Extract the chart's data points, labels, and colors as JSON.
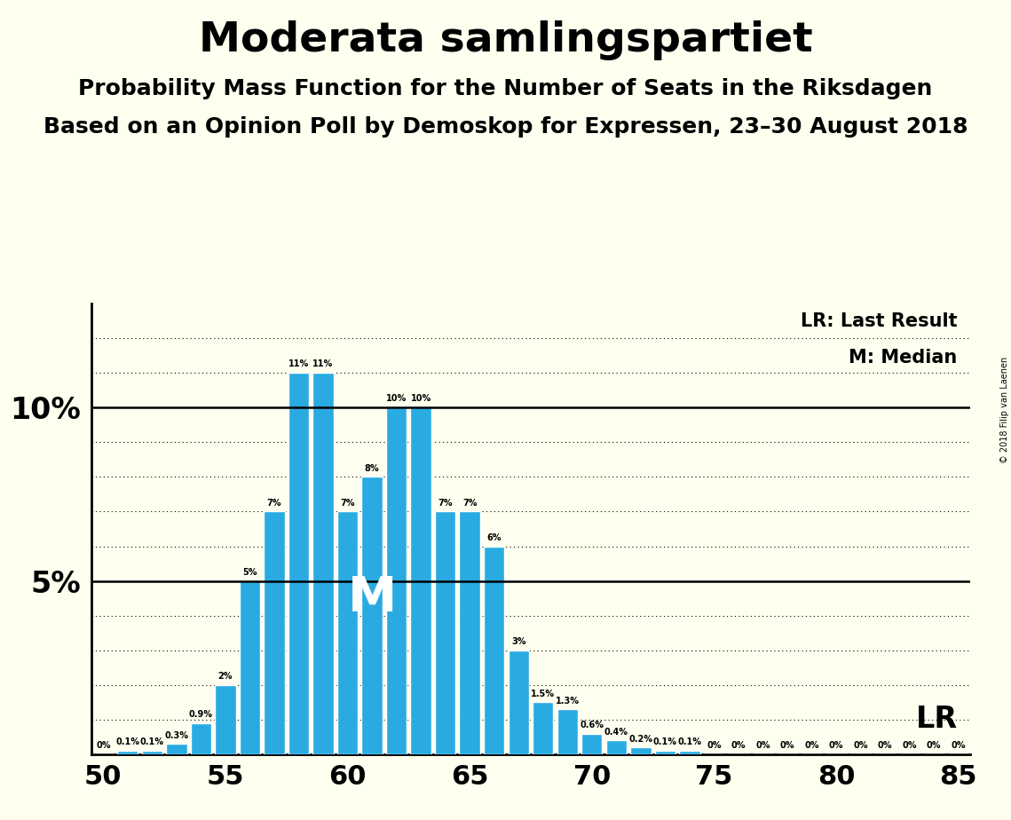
{
  "title": "Moderata samlingspartiet",
  "subtitle1": "Probability Mass Function for the Number of Seats in the Riksdagen",
  "subtitle2": "Based on an Opinion Poll by Demoskop for Expressen, 23–30 August 2018",
  "copyright": "© 2018 Filip van Laenen",
  "seats": [
    50,
    51,
    52,
    53,
    54,
    55,
    56,
    57,
    58,
    59,
    60,
    61,
    62,
    63,
    64,
    65,
    66,
    67,
    68,
    69,
    70,
    71,
    72,
    73,
    74,
    75,
    76,
    77,
    78,
    79,
    80,
    81,
    82,
    83,
    84,
    85
  ],
  "probabilities": [
    0.0,
    0.1,
    0.1,
    0.3,
    0.9,
    2.0,
    5.0,
    7.0,
    11.0,
    11.0,
    7.0,
    8.0,
    10.0,
    10.0,
    7.0,
    7.0,
    6.0,
    3.0,
    1.5,
    1.3,
    0.6,
    0.4,
    0.2,
    0.1,
    0.1,
    0.0,
    0.0,
    0.0,
    0.0,
    0.0,
    0.0,
    0.0,
    0.0,
    0.0,
    0.0,
    0.0
  ],
  "bar_color": "#29ABE2",
  "bar_edge_color": "#FFFFFF",
  "background_color": "#FFFFF0",
  "solid_lines": [
    5.0,
    10.0
  ],
  "dotted_lines": [
    1.0,
    2.0,
    3.0,
    4.0,
    6.0,
    7.0,
    8.0,
    9.0,
    11.0,
    12.0
  ],
  "lr_value": 1.0,
  "median_x": 61.0,
  "median_y": 4.5,
  "median_label": "M",
  "lr_label": "LR",
  "legend_lr": "LR: Last Result",
  "legend_m": "M: Median",
  "xlim": [
    49.5,
    85.5
  ],
  "ylim": [
    0,
    13
  ],
  "xlabel_ticks": [
    50,
    55,
    60,
    65,
    70,
    75,
    80,
    85
  ],
  "title_fontsize": 34,
  "subtitle_fontsize": 18,
  "bar_width": 0.85
}
